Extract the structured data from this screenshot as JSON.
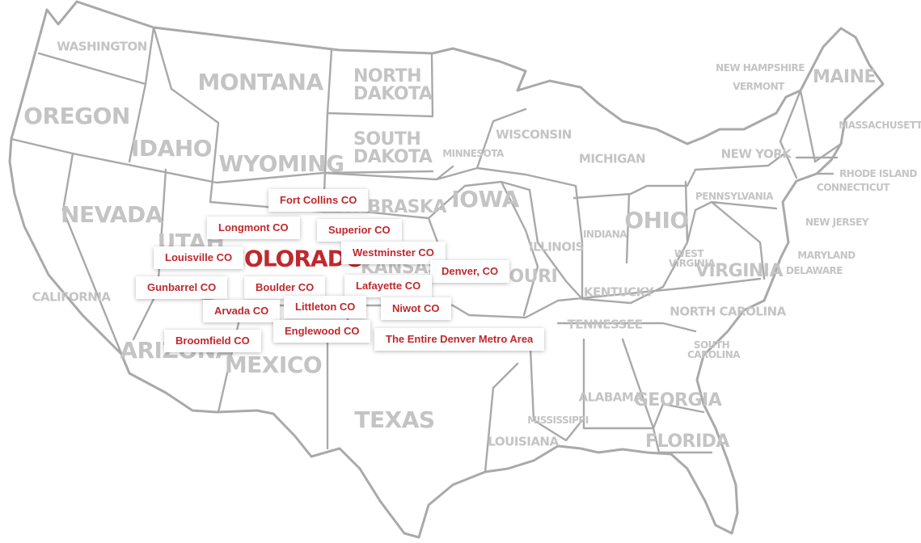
{
  "accent_color": "#c0282d",
  "outline_color": "#a9a9a9",
  "label_color": "#c4c4c4",
  "focus_state": "COLORADO",
  "states": {
    "washington": "WASHINGTON",
    "oregon": "OREGON",
    "california": "CALIFORNIA",
    "nevada": "NEVADA",
    "idaho": "IDAHO",
    "montana": "MONTANA",
    "wyoming": "WYOMING",
    "utah": "UTAH",
    "arizona": "ARIZONA",
    "new_mexico": "MEXICO",
    "north_dakota": "NORTH DAKOTA",
    "south_dakota": "SOUTH DAKOTA",
    "nebraska": "NEBRASKA",
    "kansas": "KANSAS",
    "texas": "TEXAS",
    "minnesota": "MINNESOTA",
    "iowa": "IOWA",
    "missouri": "MISSOURI",
    "wisconsin": "WISCONSIN",
    "illinois": "ILLINOIS",
    "michigan": "MICHIGAN",
    "indiana": "INDIANA",
    "ohio": "OHIO",
    "kentucky": "KENTUCKY",
    "tennessee": "TENNESSEE",
    "mississippi": "MISSISSIPPI",
    "louisiana": "LOUISIANA",
    "alabama": "ALABAMA",
    "georgia": "GEORGIA",
    "florida": "FLORIDA",
    "south_carolina": "SOUTH CAROLINA",
    "north_carolina": "NORTH CAROLINA",
    "virginia": "VIRGINIA",
    "west_virginia": "WEST VIRGINIA",
    "pennsylvania": "PENNSYLVANIA",
    "new_york": "NEW YORK",
    "maryland": "MARYLAND",
    "delaware": "DELAWARE",
    "new_jersey": "NEW JERSEY",
    "connecticut": "CONNECTICUT",
    "rhode_island": "RHODE ISLAND",
    "massachusetts": "MASSACHUSETTS",
    "vermont": "VERMONT",
    "new_hampshire": "NEW HAMPSHIRE",
    "maine": "MAINE"
  },
  "service_areas": [
    "Fort Collins CO",
    "Longmont CO",
    "Superior CO",
    "Louisville CO",
    "Westminster CO",
    "Denver, CO",
    "Gunbarrel CO",
    "Boulder CO",
    "Lafayette CO",
    "Arvada CO",
    "Littleton CO",
    "Niwot CO",
    "Englewood CO",
    "Broomfield CO",
    "The Entire Denver Metro Area"
  ]
}
